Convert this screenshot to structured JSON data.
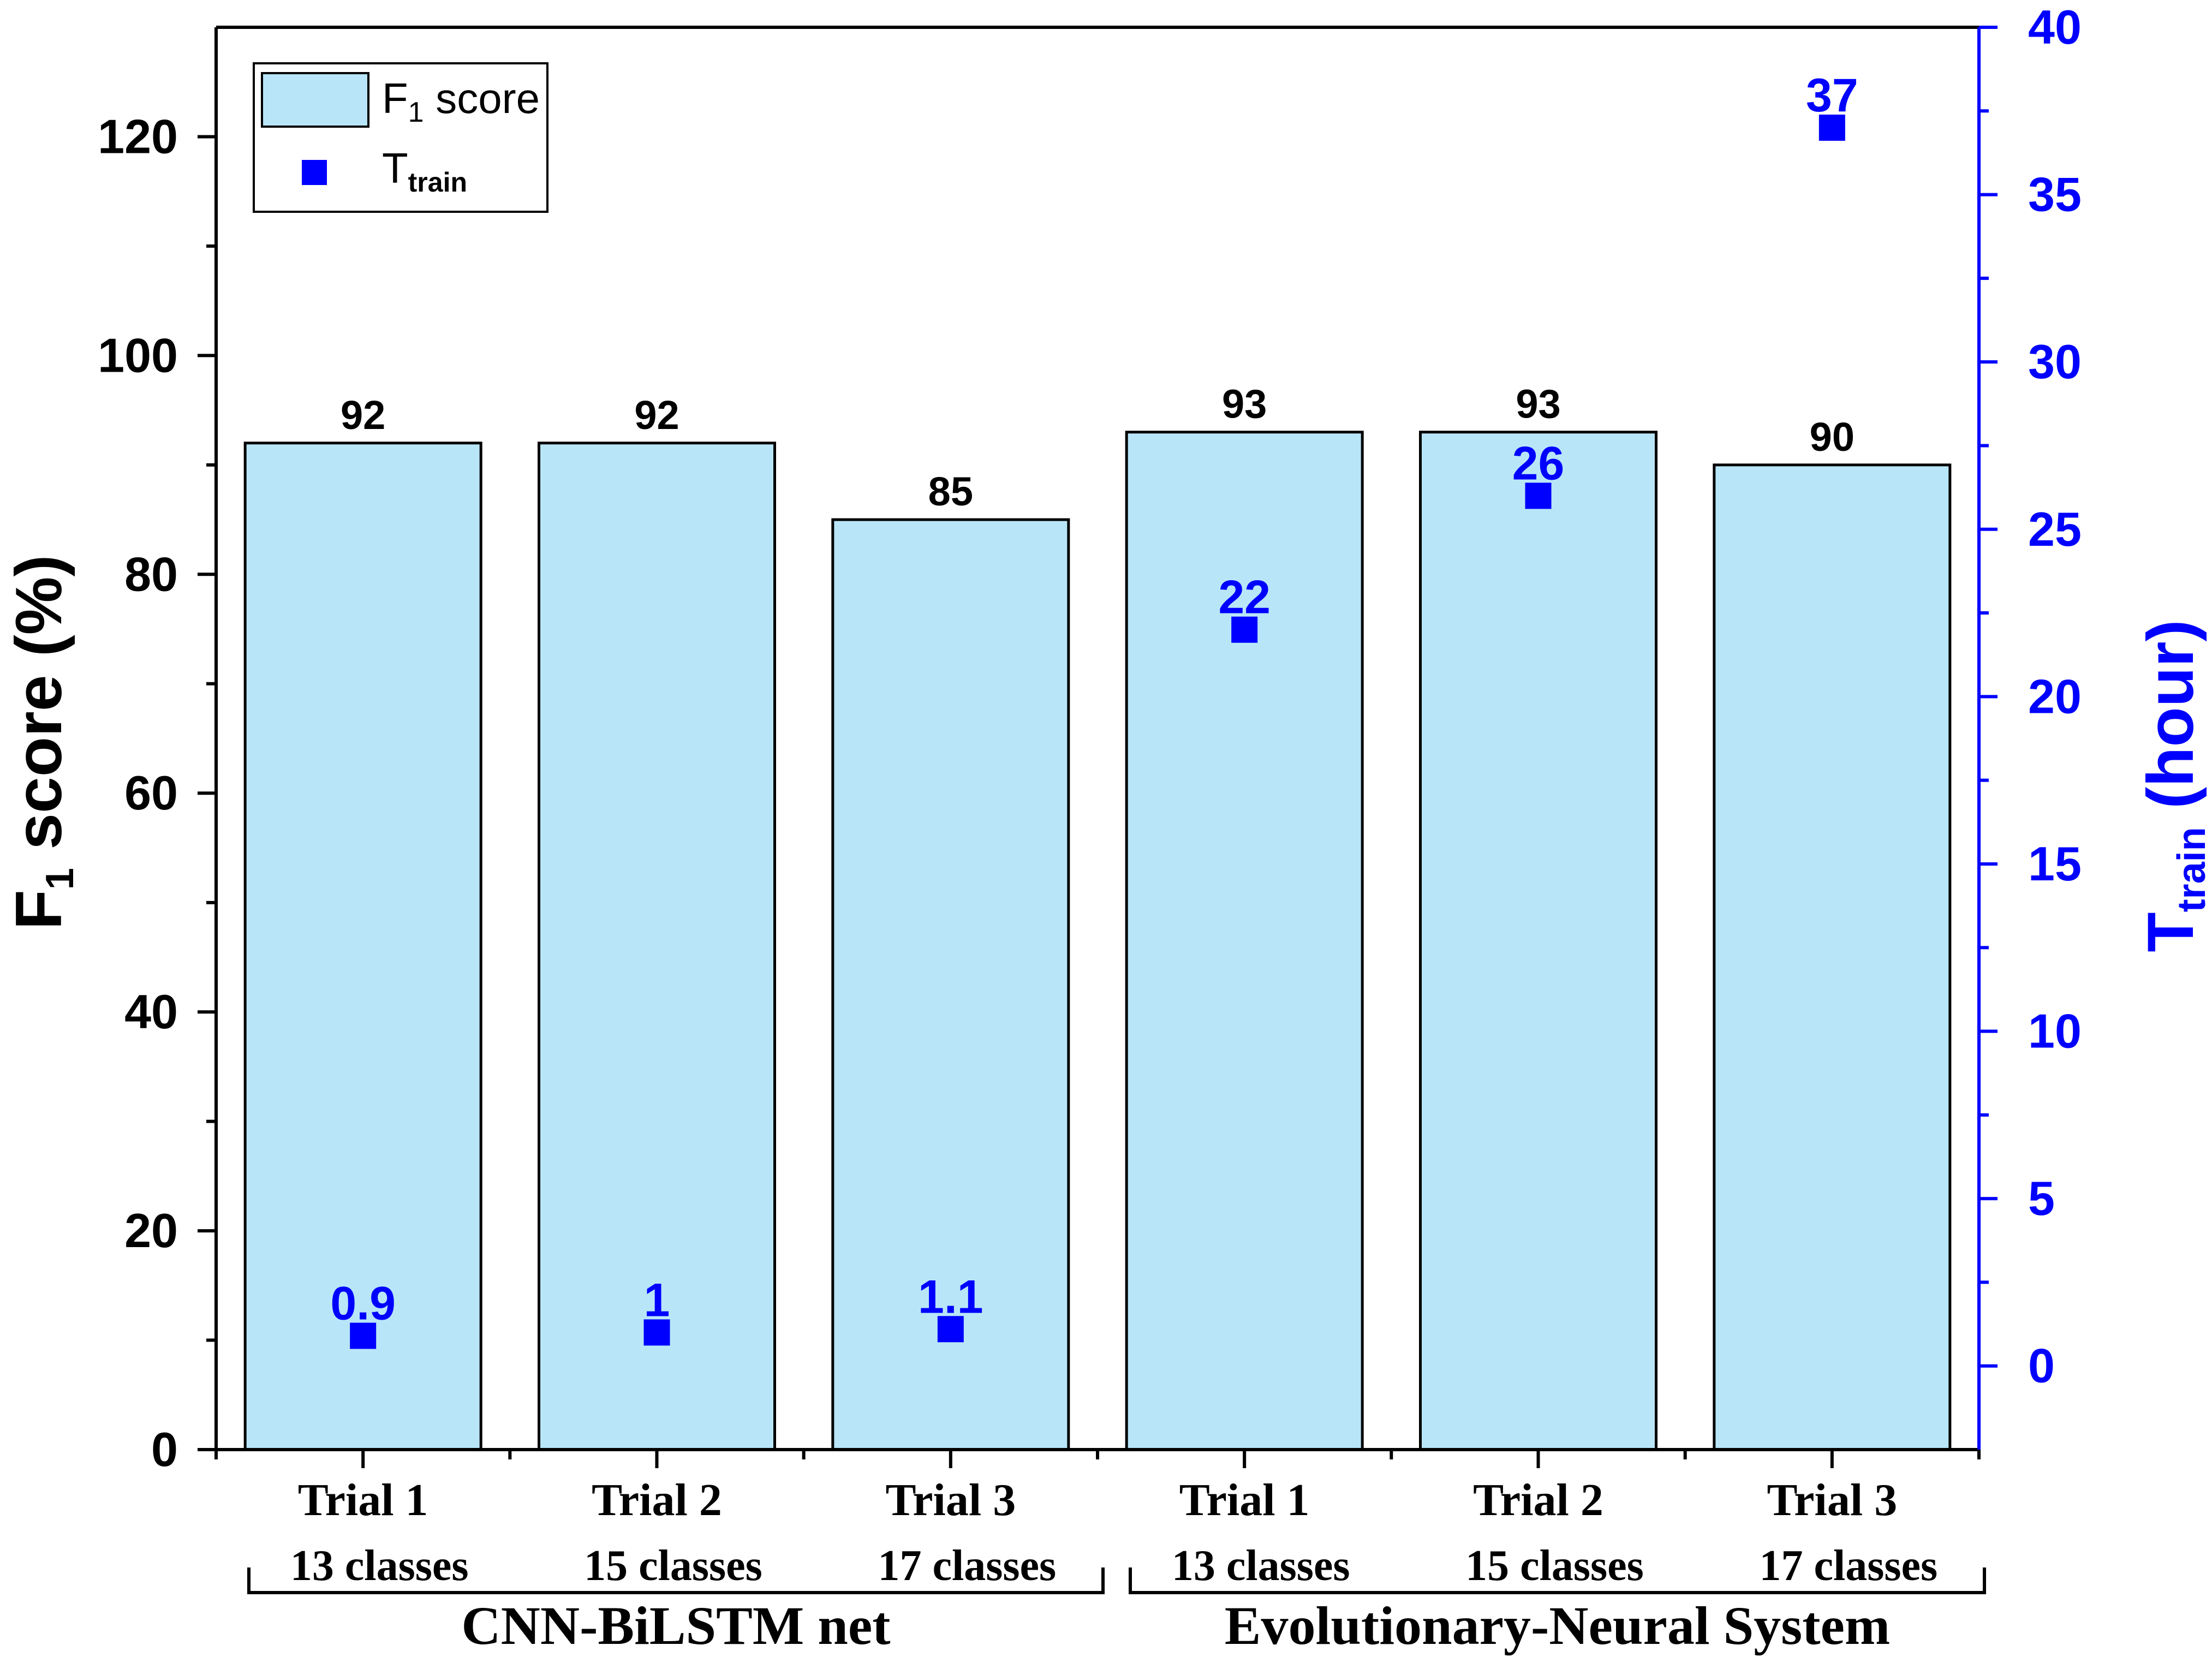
{
  "chart_data": {
    "type": "bar",
    "categories": [
      {
        "trial": "Trial 1",
        "classes": "13 classes"
      },
      {
        "trial": "Trial 2",
        "classes": "15 classes"
      },
      {
        "trial": "Trial 3",
        "classes": "17 classes"
      },
      {
        "trial": "Trial 1",
        "classes": "13 classes"
      },
      {
        "trial": "Trial 2",
        "classes": "15 classes"
      },
      {
        "trial": "Trial 3",
        "classes": "17 classes"
      }
    ],
    "groups": [
      {
        "label": "CNN-BiLSTM net",
        "members": [
          0,
          1,
          2
        ]
      },
      {
        "label": "Evolutionary-Neural System",
        "members": [
          3,
          4,
          5
        ]
      }
    ],
    "series": [
      {
        "name": "F1 score",
        "name_parts": {
          "main": "F",
          "sub": "1",
          "rest": " score"
        },
        "kind": "bar",
        "axis": "left",
        "values": [
          92,
          92,
          85,
          93,
          93,
          90
        ],
        "labels": [
          "92",
          "92",
          "85",
          "93",
          "93",
          "90"
        ],
        "color": "#b8e6f8"
      },
      {
        "name": "Ttrain",
        "name_parts": {
          "main": "T",
          "sub": "train"
        },
        "kind": "scatter",
        "axis": "right",
        "values": [
          0.9,
          1,
          1.1,
          22,
          26,
          37
        ],
        "labels": [
          "0.9",
          "1",
          "1.1",
          "22",
          "26",
          "37"
        ],
        "color": "#0000ff"
      }
    ],
    "y_left": {
      "label_parts": {
        "main": "F",
        "sub": "1",
        "rest": " score (%)"
      },
      "ylim": [
        0,
        130
      ],
      "ticks": [
        0,
        20,
        40,
        60,
        80,
        100,
        120
      ],
      "tick_labels": [
        "0",
        "20",
        "40",
        "60",
        "80",
        "100",
        "120"
      ]
    },
    "y_right": {
      "label_parts": {
        "main": "T",
        "sub": "train",
        "rest": " (hour)"
      },
      "ylim": [
        -2.5,
        40
      ],
      "ticks": [
        0,
        5,
        10,
        15,
        20,
        25,
        30,
        35,
        40
      ],
      "tick_labels": [
        "0",
        "5",
        "10",
        "15",
        "20",
        "25",
        "30",
        "35",
        "40"
      ],
      "color": "#0000ff"
    },
    "legend": "top-left",
    "grid": false
  }
}
